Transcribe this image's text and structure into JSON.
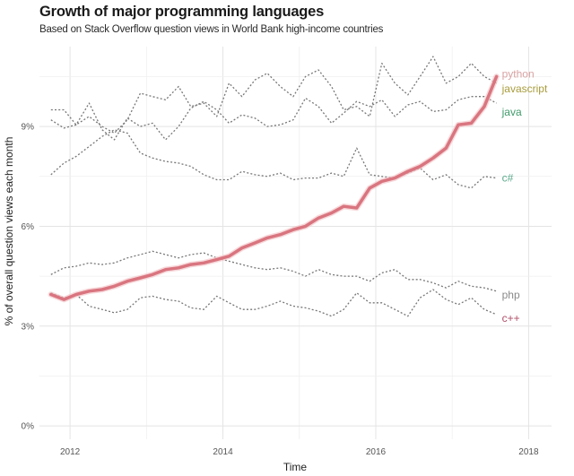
{
  "chart_data": {
    "type": "line",
    "title": "Growth of major programming languages",
    "subtitle": "Based on Stack Overflow question views in World Bank high-income countries",
    "xlabel": "Time",
    "ylabel": "% of overall question views each month",
    "xlim": [
      2011.6,
      2018.3
    ],
    "ylim": [
      -0.4,
      11.4
    ],
    "x_ticks": [
      2012,
      2014,
      2016,
      2018
    ],
    "x_tick_labels": [
      "2012",
      "2014",
      "2016",
      "2018"
    ],
    "y_ticks": [
      0,
      3,
      6,
      9
    ],
    "y_tick_labels": [
      "0%",
      "3%",
      "6%",
      "9%"
    ],
    "grid": true,
    "legend": "direct-labels-right",
    "x": [
      2011.75,
      2011.92,
      2012.08,
      2012.25,
      2012.42,
      2012.58,
      2012.75,
      2012.92,
      2013.08,
      2013.25,
      2013.42,
      2013.58,
      2013.75,
      2013.92,
      2014.08,
      2014.25,
      2014.42,
      2014.58,
      2014.75,
      2014.92,
      2015.08,
      2015.25,
      2015.42,
      2015.58,
      2015.75,
      2015.92,
      2016.08,
      2016.25,
      2016.42,
      2016.58,
      2016.75,
      2016.92,
      2017.08,
      2017.25,
      2017.42,
      2017.58
    ],
    "series": [
      {
        "name": "python",
        "style": "solid",
        "color": "#d9757f",
        "label_color": "#d9a3a3",
        "values": [
          3.95,
          3.8,
          3.95,
          4.05,
          4.1,
          4.2,
          4.35,
          4.45,
          4.55,
          4.7,
          4.75,
          4.85,
          4.9,
          5.0,
          5.1,
          5.35,
          5.5,
          5.65,
          5.75,
          5.9,
          6.0,
          6.25,
          6.4,
          6.6,
          6.55,
          7.15,
          7.35,
          7.45,
          7.65,
          7.8,
          8.05,
          8.35,
          9.05,
          9.1,
          9.6,
          10.5
        ]
      },
      {
        "name": "javascript",
        "style": "dashed",
        "color": "#777777",
        "label_color": "#a89c3c",
        "values": [
          9.5,
          9.5,
          9.05,
          9.3,
          9.0,
          8.8,
          9.2,
          10.0,
          9.9,
          9.8,
          10.2,
          9.6,
          9.7,
          9.3,
          10.3,
          9.9,
          10.4,
          10.6,
          10.2,
          9.9,
          10.5,
          10.7,
          10.2,
          9.5,
          9.6,
          9.3,
          10.9,
          10.3,
          9.95,
          10.5,
          11.1,
          10.3,
          10.5,
          10.9,
          10.5,
          10.3
        ]
      },
      {
        "name": "java",
        "style": "dashed",
        "color": "#777777",
        "label_color": "#3f9a6a",
        "values": [
          9.2,
          8.95,
          9.05,
          9.7,
          8.9,
          8.6,
          9.25,
          9.0,
          9.1,
          8.6,
          9.0,
          9.55,
          9.75,
          9.5,
          9.1,
          9.35,
          9.25,
          9.0,
          9.05,
          9.2,
          9.85,
          9.6,
          9.1,
          9.4,
          9.75,
          9.6,
          9.8,
          9.3,
          9.65,
          9.75,
          9.45,
          9.5,
          9.8,
          9.9,
          9.9,
          9.7
        ]
      },
      {
        "name": "c#",
        "style": "dashed",
        "color": "#777777",
        "label_color": "#5aa88a",
        "values": [
          7.55,
          7.9,
          8.1,
          8.4,
          8.7,
          8.9,
          8.8,
          8.2,
          8.05,
          7.95,
          7.9,
          7.8,
          7.55,
          7.4,
          7.4,
          7.65,
          7.55,
          7.5,
          7.6,
          7.4,
          7.45,
          7.45,
          7.6,
          7.5,
          8.35,
          7.55,
          7.5,
          7.45,
          7.6,
          7.75,
          7.4,
          7.55,
          7.25,
          7.15,
          7.5,
          7.45
        ]
      },
      {
        "name": "php",
        "style": "dashed",
        "color": "#777777",
        "label_color": "#8a8a8a",
        "values": [
          4.55,
          4.75,
          4.8,
          4.9,
          4.85,
          4.9,
          5.05,
          5.15,
          5.25,
          5.15,
          5.05,
          5.15,
          5.2,
          5.05,
          4.95,
          4.85,
          4.75,
          4.7,
          4.75,
          4.65,
          4.5,
          4.7,
          4.55,
          4.5,
          4.5,
          4.35,
          4.6,
          4.7,
          4.4,
          4.4,
          4.3,
          4.15,
          4.35,
          4.2,
          4.15,
          4.05
        ]
      },
      {
        "name": "c++",
        "style": "dashed",
        "color": "#777777",
        "label_color": "#b0506a",
        "values": [
          4.0,
          3.85,
          3.95,
          3.6,
          3.5,
          3.4,
          3.5,
          3.85,
          3.9,
          3.8,
          3.75,
          3.55,
          3.5,
          3.9,
          3.7,
          3.5,
          3.5,
          3.6,
          3.75,
          3.6,
          3.55,
          3.45,
          3.3,
          3.5,
          4.0,
          3.7,
          3.7,
          3.5,
          3.3,
          3.85,
          4.1,
          3.8,
          3.65,
          3.85,
          3.5,
          3.35
        ]
      }
    ]
  }
}
